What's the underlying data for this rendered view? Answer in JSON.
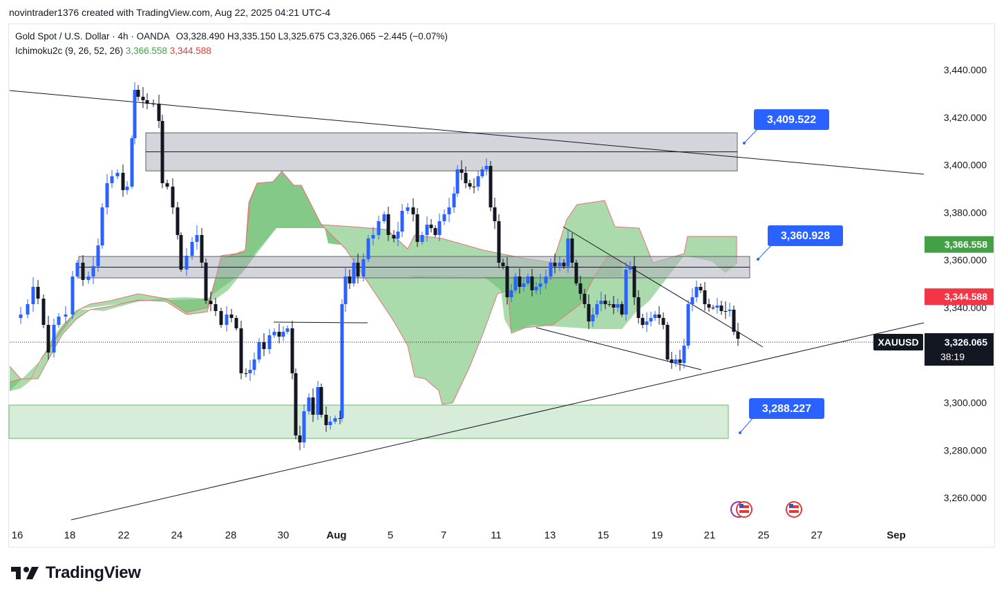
{
  "header": {
    "attribution": "novintrader1376 created with TradingView.com, Aug 22, 2025 04:21 UTC-4"
  },
  "legend": {
    "symbol": "Gold Spot / U.S. Dollar · 4h · OANDA",
    "ohlc": "O3,328.490  H3,335.150  L3,325.675  C3,326.065  −2.445 (−0.07%)",
    "indicator": "Ichimoku2c (9, 26, 52, 26)",
    "ind_val1": "3,366.558",
    "ind_val2": "3,344.588"
  },
  "price_scale": {
    "labels": [
      "3,440.000",
      "3,420.000",
      "3,400.000",
      "3,380.000",
      "3,360.000",
      "3,340.000",
      "3,320.000",
      "3,300.000",
      "3,280.000",
      "3,260.000"
    ],
    "tick_values": [
      3440,
      3420,
      3400,
      3380,
      3360,
      3340,
      3320,
      3300,
      3280,
      3260
    ],
    "green_tag": "3,366.558",
    "red_tag": "3,344.588",
    "symbol_tag": "XAUUSD",
    "last_price": "3,326.065",
    "countdown": "38:19"
  },
  "time_scale": {
    "labels": [
      "16",
      "18",
      "22",
      "24",
      "28",
      "30",
      "Aug",
      "5",
      "7",
      "11",
      "13",
      "15",
      "19",
      "21",
      "25",
      "27",
      "Sep"
    ]
  },
  "annotations": [
    "3,409.522",
    "3,360.928",
    "3,288.227"
  ],
  "chart_data": {
    "type": "candlestick",
    "title": "Gold Spot / U.S. Dollar · 4h · OANDA",
    "ylim": [
      3248,
      3450
    ],
    "x_tick_labels": [
      "16",
      "18",
      "22",
      "24",
      "28",
      "30",
      "Aug",
      "5",
      "7",
      "11",
      "13",
      "15",
      "19",
      "21",
      "25",
      "27",
      "Sep"
    ],
    "last": {
      "open": 3328.49,
      "high": 3335.15,
      "low": 3325.675,
      "close": 3326.065
    },
    "ichimoku": {
      "params": [
        9,
        26,
        52,
        26
      ],
      "values": [
        3366.558,
        3344.588
      ]
    },
    "zones": [
      {
        "kind": "resistance",
        "from": 3397.5,
        "to": 3413.5
      },
      {
        "kind": "pivot",
        "from": 3352.5,
        "to": 3361.5
      },
      {
        "kind": "support",
        "from": 3285,
        "to": 3299
      }
    ],
    "target_labels": [
      3409.522,
      3360.928,
      3288.227
    ],
    "colors": {
      "up": "#2962ff",
      "down": "#131722",
      "cloud": "#66bb6a",
      "cloud_edge": "#ef5350"
    }
  }
}
